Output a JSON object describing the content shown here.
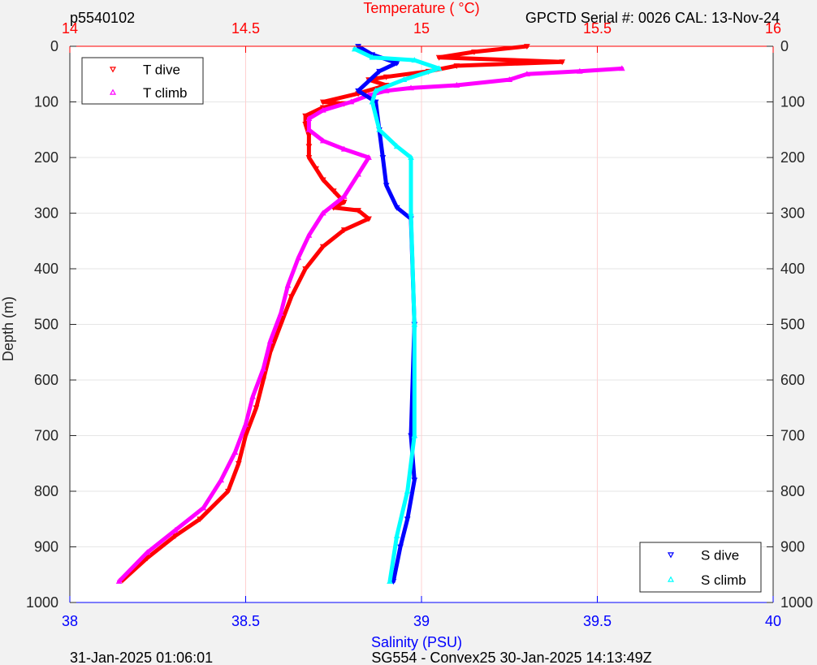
{
  "header": {
    "left_label": "p5540102",
    "right_label": "GPCTD Serial #: 0026 CAL: 13-Nov-24"
  },
  "footer": {
    "left_label": "31-Jan-2025 01:06:01",
    "center_label": "SG554 - Convex25 30-Jan-2025 14:13:49Z"
  },
  "colors": {
    "background": "#f2f2f2",
    "plot_background": "#ffffff",
    "temperature_axis": "#ff0000",
    "salinity_axis": "#0000ff",
    "depth_axis": "#262626",
    "grid": "#e6e6e6",
    "temperature_grid": "#ffd0d0",
    "t_dive": "#ff0000",
    "t_climb": "#ff00ff",
    "s_dive": "#0000ff",
    "s_climb": "#00ffff"
  },
  "chart_data": {
    "type": "line",
    "grid": true,
    "y_axis": {
      "label": "Depth (m)",
      "range": [
        0,
        1000
      ],
      "reversed": true,
      "ticks": [
        0,
        100,
        200,
        300,
        400,
        500,
        600,
        700,
        800,
        900,
        1000
      ],
      "mirrored_on_right": true
    },
    "x_axis_top": {
      "label": "Temperature (    °C)",
      "range": [
        14,
        16
      ],
      "ticks": [
        14,
        14.5,
        15,
        15.5,
        16
      ],
      "tick_labels": [
        "14",
        "14.5",
        "15",
        "15.5",
        "16"
      ]
    },
    "x_axis_bottom": {
      "label": "Salinity (PSU)",
      "range": [
        38,
        40
      ],
      "ticks": [
        38,
        38.5,
        39,
        39.5,
        40
      ],
      "tick_labels": [
        "38",
        "38.5",
        "39",
        "39.5",
        "40"
      ]
    },
    "legends": [
      {
        "placement": "top-left",
        "entries": [
          "T dive",
          "T climb"
        ]
      },
      {
        "placement": "bottom-right",
        "entries": [
          "S dive",
          "S climb"
        ]
      }
    ],
    "series": [
      {
        "name": "T dive",
        "axis": "temperature",
        "marker": "triangle-down",
        "color": "#ff0000",
        "points": [
          [
            15.3,
            0
          ],
          [
            15.15,
            10
          ],
          [
            15.05,
            20
          ],
          [
            15.4,
            28
          ],
          [
            15.1,
            35
          ],
          [
            15.02,
            45
          ],
          [
            14.9,
            55
          ],
          [
            14.85,
            60
          ],
          [
            14.9,
            70
          ],
          [
            14.82,
            85
          ],
          [
            14.72,
            100
          ],
          [
            14.78,
            103
          ],
          [
            14.72,
            110
          ],
          [
            14.67,
            125
          ],
          [
            14.67,
            140
          ],
          [
            14.68,
            160
          ],
          [
            14.68,
            180
          ],
          [
            14.68,
            200
          ],
          [
            14.7,
            220
          ],
          [
            14.72,
            240
          ],
          [
            14.75,
            260
          ],
          [
            14.78,
            280
          ],
          [
            14.75,
            290
          ],
          [
            14.82,
            295
          ],
          [
            14.85,
            310
          ],
          [
            14.78,
            330
          ],
          [
            14.72,
            360
          ],
          [
            14.67,
            400
          ],
          [
            14.63,
            450
          ],
          [
            14.6,
            500
          ],
          [
            14.57,
            550
          ],
          [
            14.55,
            600
          ],
          [
            14.53,
            650
          ],
          [
            14.5,
            700
          ],
          [
            14.48,
            750
          ],
          [
            14.45,
            800
          ],
          [
            14.37,
            850
          ],
          [
            14.3,
            880
          ],
          [
            14.22,
            920
          ],
          [
            14.15,
            960
          ]
        ]
      },
      {
        "name": "T climb",
        "axis": "temperature",
        "marker": "triangle-up",
        "color": "#ff00ff",
        "points": [
          [
            15.57,
            40
          ],
          [
            15.45,
            45
          ],
          [
            15.3,
            50
          ],
          [
            15.25,
            60
          ],
          [
            15.1,
            70
          ],
          [
            14.97,
            75
          ],
          [
            14.9,
            80
          ],
          [
            14.85,
            88
          ],
          [
            14.8,
            100
          ],
          [
            14.72,
            115
          ],
          [
            14.68,
            130
          ],
          [
            14.68,
            150
          ],
          [
            14.72,
            170
          ],
          [
            14.78,
            185
          ],
          [
            14.85,
            200
          ],
          [
            14.82,
            230
          ],
          [
            14.78,
            270
          ],
          [
            14.72,
            300
          ],
          [
            14.68,
            340
          ],
          [
            14.65,
            380
          ],
          [
            14.62,
            430
          ],
          [
            14.6,
            480
          ],
          [
            14.57,
            530
          ],
          [
            14.55,
            580
          ],
          [
            14.52,
            630
          ],
          [
            14.5,
            680
          ],
          [
            14.47,
            730
          ],
          [
            14.43,
            780
          ],
          [
            14.38,
            830
          ],
          [
            14.3,
            870
          ],
          [
            14.22,
            910
          ],
          [
            14.14,
            962
          ]
        ]
      },
      {
        "name": "S dive",
        "axis": "salinity",
        "marker": "triangle-down",
        "color": "#0000ff",
        "points": [
          [
            38.82,
            0
          ],
          [
            38.86,
            15
          ],
          [
            38.93,
            30
          ],
          [
            38.88,
            45
          ],
          [
            38.82,
            80
          ],
          [
            38.87,
            100
          ],
          [
            38.88,
            150
          ],
          [
            38.89,
            200
          ],
          [
            38.9,
            250
          ],
          [
            38.93,
            290
          ],
          [
            38.97,
            310
          ],
          [
            38.98,
            500
          ],
          [
            38.97,
            700
          ],
          [
            38.98,
            780
          ],
          [
            38.96,
            850
          ],
          [
            38.94,
            900
          ],
          [
            38.92,
            962
          ]
        ]
      },
      {
        "name": "S climb",
        "axis": "salinity",
        "marker": "triangle-up",
        "color": "#00ffff",
        "points": [
          [
            38.81,
            5
          ],
          [
            38.86,
            20
          ],
          [
            38.98,
            25
          ],
          [
            39.05,
            40
          ],
          [
            38.95,
            60
          ],
          [
            38.87,
            80
          ],
          [
            38.86,
            100
          ],
          [
            38.88,
            150
          ],
          [
            38.93,
            180
          ],
          [
            38.97,
            200
          ],
          [
            38.97,
            300
          ],
          [
            38.98,
            500
          ],
          [
            38.98,
            700
          ],
          [
            38.96,
            800
          ],
          [
            38.93,
            880
          ],
          [
            38.91,
            962
          ]
        ]
      }
    ]
  }
}
